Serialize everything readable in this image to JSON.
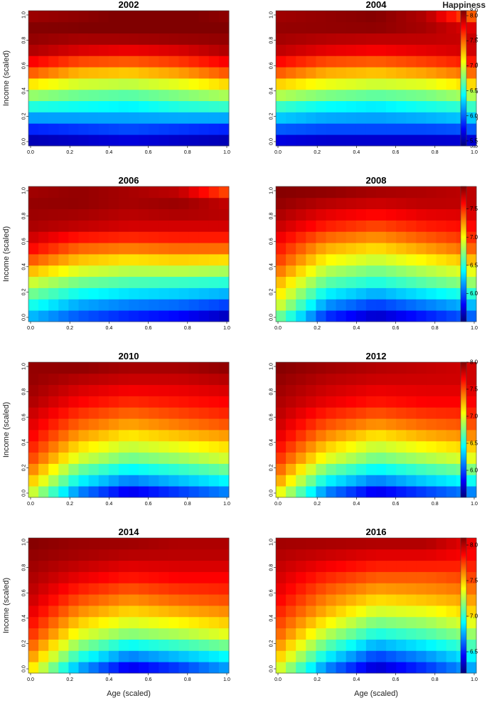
{
  "chart_data": {
    "type": "heatmap",
    "panels": [
      {
        "title": "2002",
        "z_range": [
          5.5,
          8.0
        ],
        "ticks": [
          5.5,
          6.0,
          6.5,
          7.0,
          7.5,
          8.0
        ],
        "colorbar": true,
        "colorbar_title": "Happiness",
        "xlabel": "",
        "ylabel": "Income (scaled)",
        "top": 8.0,
        "top_dip": 0.0,
        "low_right": 0.0,
        "mid_rise": 0.6,
        "rows": [
          [
            5.5,
            5.55,
            5.6,
            5.55,
            5.5
          ],
          [
            5.95,
            6.0,
            6.05,
            6.0,
            5.95
          ],
          [
            6.5,
            6.45,
            6.4,
            6.5,
            6.55
          ],
          [
            7.0,
            6.85,
            6.8,
            6.9,
            7.05
          ],
          [
            7.6,
            7.35,
            7.3,
            7.4,
            7.6
          ],
          [
            7.9,
            7.8,
            7.75,
            7.8,
            7.9
          ],
          [
            8.0,
            8.0,
            8.05,
            8.05,
            8.0
          ],
          [
            7.9,
            7.95,
            8.0,
            8.0,
            7.95
          ]
        ]
      },
      {
        "title": "2004",
        "z_range": [
          5.4,
          8.1
        ],
        "ticks": [
          5.5,
          6.0,
          6.5,
          7.0,
          7.5,
          8.0
        ],
        "colorbar": true,
        "colorbar_title": "",
        "xlabel": "",
        "ylabel": "",
        "top": 8.1,
        "top_dip": 0.0,
        "low_right": 0.0,
        "mid_rise": 0.0,
        "rows": [
          [
            5.5,
            5.45,
            5.45,
            5.45,
            5.45
          ],
          [
            6.05,
            6.0,
            6.0,
            6.0,
            6.05
          ],
          [
            6.55,
            6.4,
            6.35,
            6.45,
            6.55
          ],
          [
            7.1,
            6.95,
            6.85,
            6.9,
            7.1
          ],
          [
            7.65,
            7.4,
            7.35,
            7.45,
            7.6
          ],
          [
            7.95,
            7.85,
            7.8,
            7.85,
            7.9
          ],
          [
            8.05,
            8.05,
            8.05,
            8.0,
            7.9
          ],
          [
            8.0,
            8.05,
            8.1,
            7.95,
            7.3
          ]
        ]
      },
      {
        "title": "2006",
        "z_range": [
          5.5,
          8.1
        ],
        "ticks": [],
        "colorbar": false,
        "colorbar_title": "",
        "xlabel": "",
        "ylabel": "Income (scaled)",
        "top": 8.1,
        "top_dip": 0.0,
        "low_right": 0.0,
        "mid_rise": 0.0,
        "rows": [
          [
            6.2,
            5.95,
            5.8,
            5.7,
            5.5
          ],
          [
            6.6,
            6.3,
            6.2,
            6.15,
            6.05
          ],
          [
            7.0,
            6.75,
            6.65,
            6.6,
            6.55
          ],
          [
            7.5,
            7.2,
            7.1,
            7.15,
            7.1
          ],
          [
            7.85,
            7.6,
            7.55,
            7.6,
            7.6
          ],
          [
            8.0,
            7.95,
            7.9,
            7.9,
            7.9
          ],
          [
            8.05,
            8.05,
            8.0,
            8.05,
            8.0
          ],
          [
            8.0,
            8.05,
            8.0,
            7.9,
            7.4
          ]
        ]
      },
      {
        "title": "2008",
        "z_range": [
          5.5,
          7.9
        ],
        "ticks": [
          6.0,
          6.5,
          7.0,
          7.5
        ],
        "colorbar": true,
        "colorbar_title": "",
        "xlabel": "",
        "ylabel": "",
        "top": 7.9,
        "top_dip": 0.0,
        "low_right": 0.0,
        "mid_rise": 0.0,
        "rows": [
          [
            6.6,
            5.8,
            5.55,
            5.75,
            5.95
          ],
          [
            7.0,
            6.2,
            6.0,
            6.15,
            6.3
          ],
          [
            7.2,
            6.6,
            6.45,
            6.6,
            6.75
          ],
          [
            7.45,
            6.95,
            6.8,
            6.95,
            7.1
          ],
          [
            7.6,
            7.25,
            7.15,
            7.3,
            7.45
          ],
          [
            7.75,
            7.55,
            7.45,
            7.55,
            7.6
          ],
          [
            7.85,
            7.75,
            7.7,
            7.75,
            7.75
          ],
          [
            7.9,
            7.9,
            7.85,
            7.8,
            7.75
          ]
        ]
      },
      {
        "title": "2010",
        "z_range": [
          5.5,
          8.0
        ],
        "ticks": [],
        "colorbar": false,
        "colorbar_title": "",
        "xlabel": "",
        "ylabel": "Income (scaled)",
        "top": 8.0,
        "top_dip": 0.0,
        "low_right": 0.0,
        "mid_rise": 0.0,
        "rows": [
          [
            6.9,
            6.0,
            5.6,
            5.8,
            6.0
          ],
          [
            7.3,
            6.5,
            6.2,
            6.35,
            6.5
          ],
          [
            7.55,
            6.95,
            6.7,
            6.8,
            6.95
          ],
          [
            7.7,
            7.25,
            7.05,
            7.15,
            7.25
          ],
          [
            7.8,
            7.5,
            7.35,
            7.45,
            7.55
          ],
          [
            7.9,
            7.7,
            7.6,
            7.65,
            7.7
          ],
          [
            7.95,
            7.85,
            7.8,
            7.8,
            7.85
          ],
          [
            7.95,
            8.0,
            7.95,
            7.95,
            8.0
          ]
        ]
      },
      {
        "title": "2012",
        "z_range": [
          5.5,
          8.0
        ],
        "ticks": [
          6.0,
          6.5,
          7.0,
          7.5,
          8.0
        ],
        "colorbar": true,
        "colorbar_title": "",
        "xlabel": "",
        "ylabel": "",
        "top": 8.0,
        "top_dip": 0.0,
        "low_right": 0.0,
        "mid_rise": 0.0,
        "rows": [
          [
            7.0,
            6.0,
            5.6,
            5.8,
            6.0
          ],
          [
            7.4,
            6.5,
            6.2,
            6.4,
            6.55
          ],
          [
            7.6,
            7.0,
            6.7,
            6.85,
            7.0
          ],
          [
            7.75,
            7.3,
            7.05,
            7.2,
            7.3
          ],
          [
            7.85,
            7.55,
            7.4,
            7.5,
            7.55
          ],
          [
            7.9,
            7.75,
            7.65,
            7.7,
            7.7
          ],
          [
            7.95,
            7.85,
            7.8,
            7.8,
            7.8
          ],
          [
            8.0,
            7.95,
            7.9,
            7.85,
            7.8
          ]
        ]
      },
      {
        "title": "2014",
        "z_range": [
          5.5,
          8.0
        ],
        "ticks": [],
        "colorbar": false,
        "colorbar_title": "",
        "xlabel": "Age (scaled)",
        "ylabel": "Income (scaled)",
        "top": 8.0,
        "top_dip": 0.0,
        "low_right": 0.0,
        "mid_rise": 0.0,
        "rows": [
          [
            7.1,
            6.1,
            5.6,
            5.8,
            6.1
          ],
          [
            7.4,
            6.6,
            6.2,
            6.35,
            6.5
          ],
          [
            7.6,
            7.0,
            6.75,
            6.85,
            7.0
          ],
          [
            7.75,
            7.3,
            7.1,
            7.2,
            7.3
          ],
          [
            7.85,
            7.55,
            7.4,
            7.5,
            7.55
          ],
          [
            7.9,
            7.75,
            7.65,
            7.7,
            7.7
          ],
          [
            7.95,
            7.9,
            7.85,
            7.85,
            7.85
          ],
          [
            8.0,
            7.95,
            7.95,
            7.9,
            7.9
          ]
        ]
      },
      {
        "title": "2016",
        "z_range": [
          6.2,
          8.1
        ],
        "ticks": [
          6.5,
          7.0,
          7.5,
          8.0
        ],
        "colorbar": true,
        "colorbar_title": "",
        "xlabel": "Age (scaled)",
        "ylabel": "",
        "top": 8.1,
        "top_dip": 0.0,
        "low_right": 0.0,
        "mid_rise": 0.0,
        "rows": [
          [
            7.3,
            6.6,
            6.25,
            6.45,
            6.7
          ],
          [
            7.55,
            6.95,
            6.6,
            6.75,
            6.95
          ],
          [
            7.7,
            7.25,
            6.95,
            7.05,
            7.2
          ],
          [
            7.8,
            7.5,
            7.25,
            7.3,
            7.45
          ],
          [
            7.9,
            7.65,
            7.5,
            7.55,
            7.6
          ],
          [
            7.95,
            7.8,
            7.7,
            7.7,
            7.75
          ],
          [
            8.0,
            7.95,
            7.9,
            7.9,
            7.85
          ],
          [
            8.05,
            8.05,
            8.05,
            8.05,
            7.9
          ]
        ]
      }
    ],
    "x_ticks": [
      "0.0",
      "0.2",
      "0.4",
      "0.6",
      "0.8",
      "1.0"
    ],
    "y_ticks": [
      "0.0",
      "0.2",
      "0.4",
      "0.6",
      "0.8",
      "1.0"
    ],
    "x_range": [
      0,
      1
    ],
    "y_range": [
      0,
      1
    ],
    "grid": false,
    "colormap": "jet"
  }
}
